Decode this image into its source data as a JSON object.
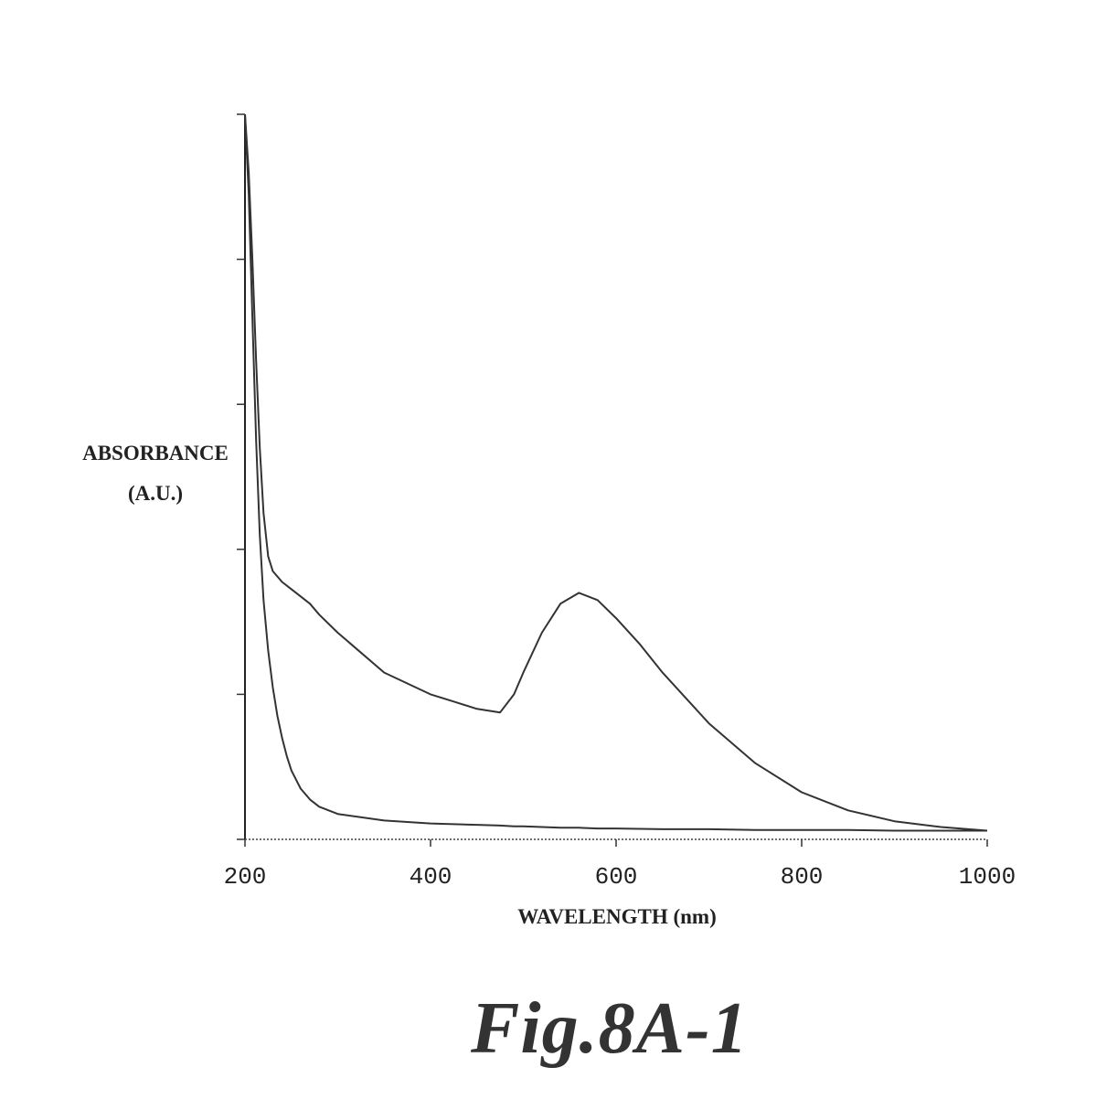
{
  "chart_data": {
    "type": "line",
    "title": "",
    "xlabel": "WAVELENGTH (nm)",
    "ylabel": [
      "ABSORBANCE",
      "(A.U.)"
    ],
    "xlim": [
      200,
      1000
    ],
    "ylim": [
      0,
      1
    ],
    "x_ticks": [
      200,
      400,
      600,
      800,
      1000
    ],
    "y_ticks_labeled": false,
    "y_tick_values": [
      0,
      0.2,
      0.4,
      0.6,
      0.8,
      1.0
    ],
    "grid": false,
    "legend": "none",
    "series": [
      {
        "color": "#333333",
        "x": [
          200,
          204,
          208,
          212,
          216,
          220,
          225,
          230,
          235,
          240,
          245,
          250,
          260,
          270,
          280,
          300,
          350,
          400,
          450,
          475,
          490,
          500,
          520,
          540,
          560,
          580,
          600,
          650,
          700,
          750,
          800,
          850,
          900,
          950,
          1000
        ],
        "y": [
          1.0,
          0.89,
          0.72,
          0.55,
          0.42,
          0.33,
          0.26,
          0.21,
          0.17,
          0.14,
          0.115,
          0.095,
          0.07,
          0.055,
          0.045,
          0.035,
          0.026,
          0.022,
          0.02,
          0.019,
          0.018,
          0.018,
          0.017,
          0.016,
          0.016,
          0.015,
          0.015,
          0.014,
          0.014,
          0.013,
          0.013,
          0.013,
          0.012,
          0.012,
          0.012
        ]
      },
      {
        "color": "#333333",
        "x": [
          200,
          204,
          208,
          212,
          216,
          220,
          225,
          230,
          240,
          250,
          260,
          270,
          280,
          300,
          350,
          400,
          425,
          450,
          475,
          490,
          500,
          520,
          540,
          560,
          580,
          600,
          625,
          650,
          700,
          750,
          800,
          850,
          900,
          950,
          1000
        ],
        "y": [
          1.0,
          0.92,
          0.8,
          0.66,
          0.54,
          0.45,
          0.39,
          0.37,
          0.355,
          0.345,
          0.335,
          0.325,
          0.31,
          0.285,
          0.23,
          0.2,
          0.19,
          0.18,
          0.175,
          0.2,
          0.23,
          0.285,
          0.325,
          0.34,
          0.33,
          0.305,
          0.27,
          0.23,
          0.16,
          0.105,
          0.065,
          0.04,
          0.025,
          0.017,
          0.012
        ]
      }
    ]
  },
  "figure": {
    "label": "Fig.8A-1"
  }
}
